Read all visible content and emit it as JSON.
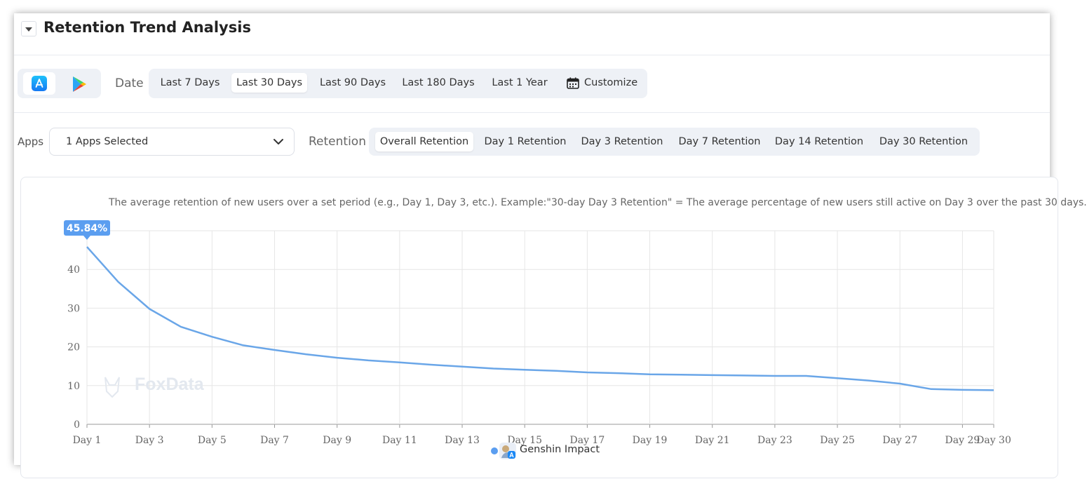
{
  "header": {
    "title": "Retention Trend Analysis"
  },
  "stores": [
    {
      "name": "App Store",
      "icon": "app-store-icon",
      "active": true
    },
    {
      "name": "Google Play",
      "icon": "google-play-icon",
      "active": false
    }
  ],
  "date_filter": {
    "label": "Date",
    "options": [
      "Last 7 Days",
      "Last 30 Days",
      "Last 90 Days",
      "Last 180 Days",
      "Last 1 Year"
    ],
    "customize_label": "Customize",
    "selected": "Last 30 Days"
  },
  "apps_filter": {
    "label": "Apps",
    "value": "1 Apps Selected"
  },
  "retention_filter": {
    "label": "Retention",
    "options": [
      "Overall Retention",
      "Day 1 Retention",
      "Day 3 Retention",
      "Day 7 Retention",
      "Day 14 Retention",
      "Day 30 Retention"
    ],
    "selected": "Overall Retention"
  },
  "chart_note": "The average retention of new users over a set period (e.g., Day 1, Day 3, etc.). Example:\"30-day Day 3 Retention\" = The average percentage of new users still active on Day 3 over the past 30 days.",
  "watermark": "FoxData",
  "colors": {
    "series": "#6aa6e8",
    "badge": "#5b9ef0",
    "accent": "#1677ff"
  },
  "chart_data": {
    "type": "line",
    "x": [
      "Day 1",
      "Day 2",
      "Day 3",
      "Day 4",
      "Day 5",
      "Day 6",
      "Day 7",
      "Day 8",
      "Day 9",
      "Day 10",
      "Day 11",
      "Day 12",
      "Day 13",
      "Day 14",
      "Day 15",
      "Day 16",
      "Day 17",
      "Day 18",
      "Day 19",
      "Day 20",
      "Day 21",
      "Day 22",
      "Day 23",
      "Day 24",
      "Day 25",
      "Day 26",
      "Day 27",
      "Day 28",
      "Day 29",
      "Day 30"
    ],
    "x_tick_labels": [
      "Day 1",
      "Day 3",
      "Day 5",
      "Day 7",
      "Day 9",
      "Day 11",
      "Day 13",
      "Day 15",
      "Day 17",
      "Day 19",
      "Day 21",
      "Day 23",
      "Day 25",
      "Day 27",
      "Day 29",
      "Day 30"
    ],
    "series": [
      {
        "name": "Genshin Impact",
        "values": [
          45.84,
          36.8,
          29.8,
          25.2,
          22.6,
          20.4,
          19.2,
          18.1,
          17.2,
          16.5,
          16.0,
          15.4,
          14.9,
          14.4,
          14.1,
          13.8,
          13.4,
          13.2,
          12.9,
          12.8,
          12.7,
          12.6,
          12.5,
          12.5,
          11.9,
          11.3,
          10.5,
          9.1,
          8.9,
          8.8
        ]
      }
    ],
    "highlight": {
      "index": 0,
      "label": "45.84%"
    },
    "ylim": [
      0,
      50
    ],
    "y_ticks": [
      0,
      10,
      20,
      30,
      40
    ],
    "grid": true,
    "legend_position": "bottom-center"
  }
}
